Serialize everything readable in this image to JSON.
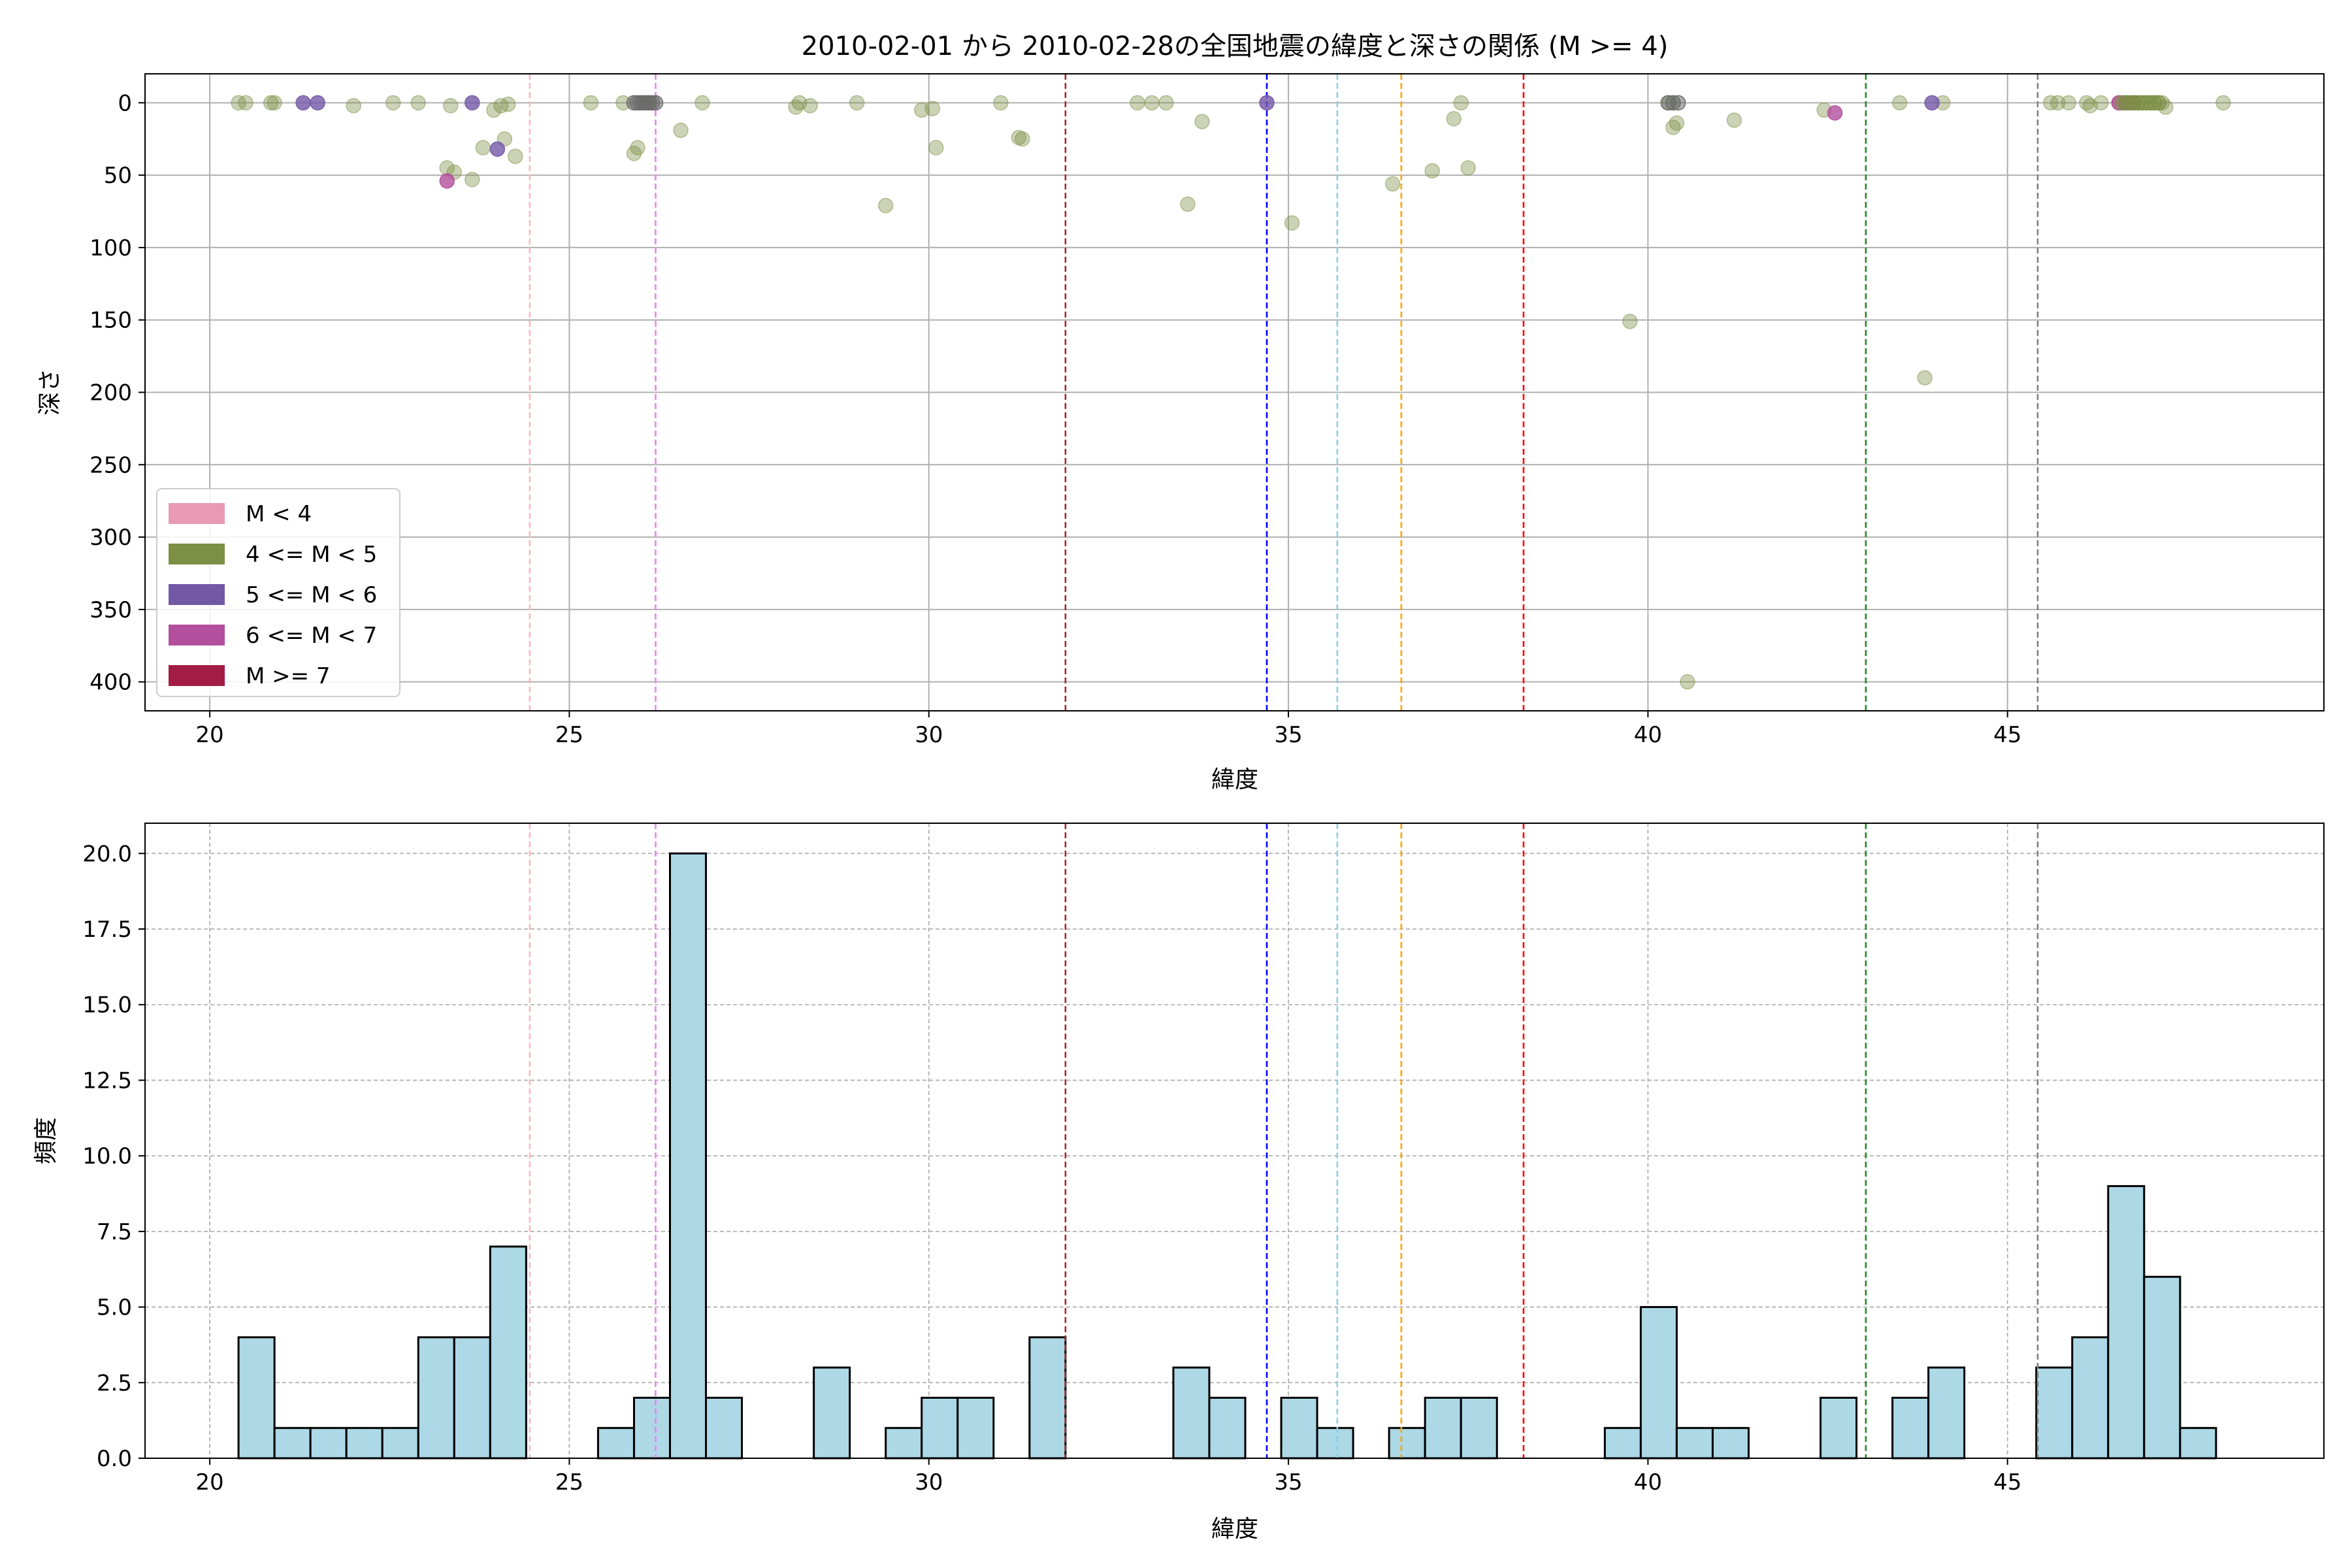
{
  "chart_data": [
    {
      "type": "scatter",
      "title": "2010-02-01 から 2010-02-28の全国地震の緯度と深さの関係 (M >= 4)",
      "xlabel": "緯度",
      "ylabel": "深さ",
      "xlim": [
        19.1,
        49.4
      ],
      "ylim": [
        420,
        -20
      ],
      "y_inverted": true,
      "grid": true,
      "xticks": [
        20,
        25,
        30,
        35,
        40,
        45
      ],
      "xtick_labels": [
        "20",
        "25",
        "30",
        "35",
        "40",
        "45"
      ],
      "yticks": [
        0,
        50,
        100,
        150,
        200,
        250,
        300,
        350,
        400
      ],
      "ytick_labels": [
        "0",
        "50",
        "100",
        "150",
        "200",
        "250",
        "300",
        "350",
        "400"
      ],
      "legend_position": "lower-left",
      "legend": [
        {
          "label": "M < 4",
          "color": "#e899b3"
        },
        {
          "label": "4 <= M < 5",
          "color": "#7d8f45"
        },
        {
          "label": "5 <= M < 6",
          "color": "#7358a6"
        },
        {
          "label": "6 <= M < 7",
          "color": "#b34f9c"
        },
        {
          "label": "M >= 7",
          "color": "#a31c45"
        }
      ],
      "reference_lines": [
        {
          "x": 24.45,
          "color": "#ffb6c1"
        },
        {
          "x": 26.2,
          "color": "#ee82ee"
        },
        {
          "x": 31.9,
          "color": "#a52a2a"
        },
        {
          "x": 34.7,
          "color": "#0000ff"
        },
        {
          "x": 35.68,
          "color": "#87ceeb"
        },
        {
          "x": 36.57,
          "color": "#ffa500"
        },
        {
          "x": 38.27,
          "color": "#ff0000"
        },
        {
          "x": 43.03,
          "color": "#228b22"
        },
        {
          "x": 45.42,
          "color": "#808080"
        }
      ],
      "series": [
        {
          "color": "#7d8f45",
          "alpha": 0.4,
          "points": [
            [
              20.4,
              0
            ],
            [
              20.5,
              0
            ],
            [
              20.85,
              0
            ],
            [
              20.9,
              0
            ],
            [
              22.0,
              2
            ],
            [
              22.55,
              0
            ],
            [
              22.9,
              0
            ],
            [
              23.3,
              45
            ],
            [
              23.4,
              48
            ],
            [
              23.35,
              2
            ],
            [
              23.65,
              53
            ],
            [
              23.8,
              31
            ],
            [
              23.95,
              5
            ],
            [
              24.05,
              2
            ],
            [
              24.1,
              25
            ],
            [
              24.15,
              1
            ],
            [
              24.25,
              37
            ],
            [
              25.3,
              0
            ],
            [
              25.75,
              0
            ],
            [
              25.9,
              35
            ],
            [
              25.95,
              31
            ],
            [
              26.1,
              0
            ],
            [
              26.55,
              19
            ],
            [
              26.85,
              0
            ],
            [
              28.15,
              3
            ],
            [
              28.2,
              0
            ],
            [
              28.35,
              2
            ],
            [
              29.0,
              0
            ],
            [
              29.4,
              71
            ],
            [
              29.9,
              5
            ],
            [
              30.05,
              4
            ],
            [
              30.1,
              31
            ],
            [
              31.0,
              0
            ],
            [
              31.25,
              24
            ],
            [
              31.3,
              25
            ],
            [
              32.9,
              0
            ],
            [
              33.1,
              0
            ],
            [
              33.3,
              0
            ],
            [
              33.6,
              70
            ],
            [
              33.8,
              13
            ],
            [
              35.05,
              83
            ],
            [
              36.45,
              56
            ],
            [
              37.0,
              47
            ],
            [
              37.3,
              11
            ],
            [
              37.4,
              0
            ],
            [
              37.5,
              45
            ],
            [
              39.75,
              151
            ],
            [
              40.3,
              0
            ],
            [
              40.35,
              17
            ],
            [
              40.4,
              14
            ],
            [
              40.55,
              400
            ],
            [
              41.2,
              12
            ],
            [
              42.45,
              5
            ],
            [
              43.5,
              0
            ],
            [
              43.85,
              190
            ],
            [
              44.1,
              0
            ],
            [
              45.6,
              0
            ],
            [
              45.7,
              0
            ],
            [
              45.85,
              0
            ],
            [
              46.1,
              0
            ],
            [
              46.15,
              2
            ],
            [
              46.3,
              0
            ],
            [
              46.55,
              0
            ],
            [
              47.15,
              0
            ],
            [
              47.2,
              3
            ],
            [
              48.0,
              0
            ]
          ]
        },
        {
          "color": "#7358a6",
          "alpha": 0.8,
          "points": [
            [
              21.3,
              0
            ],
            [
              21.5,
              0
            ],
            [
              23.65,
              0
            ],
            [
              24.0,
              32
            ],
            [
              34.7,
              0
            ],
            [
              43.95,
              0
            ],
            [
              46.65,
              0
            ]
          ]
        },
        {
          "color": "#b34f9c",
          "alpha": 0.8,
          "points": [
            [
              23.3,
              54
            ],
            [
              42.6,
              7
            ],
            [
              46.55,
              0
            ],
            [
              46.75,
              0
            ]
          ]
        }
      ],
      "dense_clusters": [
        {
          "color": "#6b6b6b",
          "x_range": [
            25.9,
            26.2
          ],
          "y": 0,
          "count": 8
        },
        {
          "color": "#6b6b6b",
          "x_range": [
            40.28,
            40.42
          ],
          "y": 0,
          "count": 3
        },
        {
          "color": "#7d8f45",
          "x_range": [
            46.6,
            47.1
          ],
          "y": 0,
          "count": 10
        }
      ]
    },
    {
      "type": "bar",
      "subtype": "histogram",
      "xlabel": "緯度",
      "ylabel": "頻度",
      "xlim": [
        19.1,
        49.4
      ],
      "ylim": [
        0,
        21
      ],
      "grid": true,
      "xticks": [
        20,
        25,
        30,
        35,
        40,
        45
      ],
      "xtick_labels": [
        "20",
        "25",
        "30",
        "35",
        "40",
        "45"
      ],
      "yticks": [
        0,
        2.5,
        5,
        7.5,
        10,
        12.5,
        15,
        17.5,
        20
      ],
      "ytick_labels": [
        "0.0",
        "2.5",
        "5.0",
        "7.5",
        "10.0",
        "12.5",
        "15.0",
        "17.5",
        "20.0"
      ],
      "bar_color": "#add8e6",
      "bin_start": 20.4,
      "bin_width": 0.5,
      "values": [
        4,
        1,
        1,
        1,
        1,
        4,
        4,
        7,
        0,
        0,
        1,
        2,
        20,
        2,
        0,
        0,
        3,
        0,
        1,
        2,
        2,
        0,
        4,
        0,
        0,
        0,
        3,
        2,
        0,
        2,
        1,
        0,
        1,
        2,
        2,
        0,
        0,
        0,
        1,
        5,
        1,
        1,
        0,
        0,
        2,
        0,
        2,
        3,
        0,
        0,
        3,
        4,
        9,
        6,
        1
      ],
      "reference_lines": [
        {
          "x": 24.45,
          "color": "#ffb6c1"
        },
        {
          "x": 26.2,
          "color": "#ee82ee"
        },
        {
          "x": 31.9,
          "color": "#a52a2a"
        },
        {
          "x": 34.7,
          "color": "#0000ff"
        },
        {
          "x": 35.68,
          "color": "#87ceeb"
        },
        {
          "x": 36.57,
          "color": "#ffa500"
        },
        {
          "x": 38.27,
          "color": "#ff0000"
        },
        {
          "x": 43.03,
          "color": "#228b22"
        },
        {
          "x": 45.42,
          "color": "#808080"
        }
      ]
    }
  ]
}
